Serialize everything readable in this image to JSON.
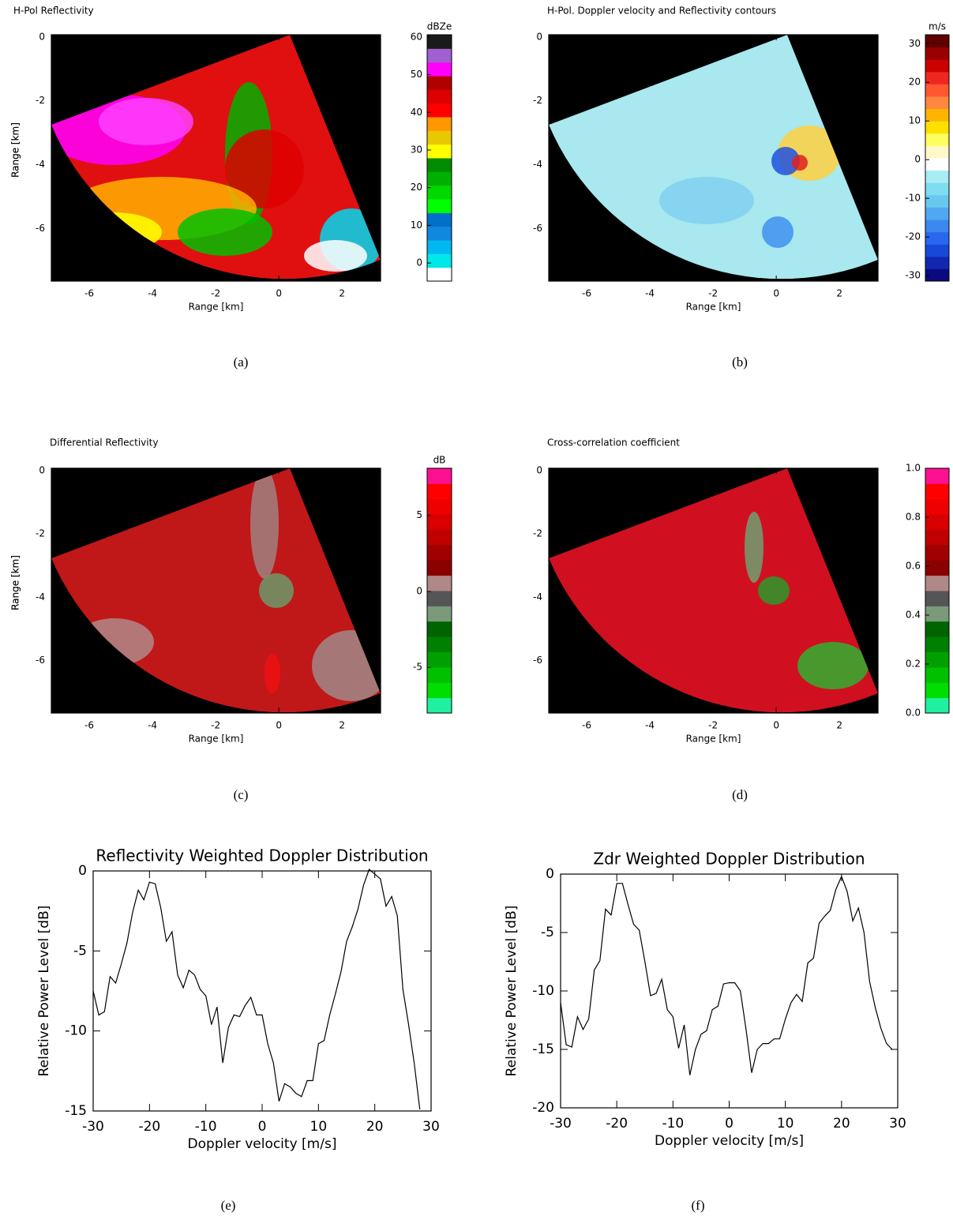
{
  "chart_data": [
    {
      "type": "image",
      "title": "H-Pol Reflectivity",
      "xlabel": "Range [km]",
      "ylabel": "Range [km]",
      "xlim": [
        -7.2,
        3.22
      ],
      "ylim": [
        -7.65,
        0.07
      ],
      "xticks": [
        -6,
        -4,
        -2,
        0,
        2
      ],
      "yticks": [
        0,
        -2,
        -4,
        -6
      ],
      "colorbar": {
        "label": "dBZe",
        "lim": [
          -4.8,
          60.6
        ],
        "ticks": [
          0,
          10,
          20,
          30,
          40,
          50,
          60
        ],
        "colors": [
          "#ffffff",
          "#00e8e8",
          "#00b8f0",
          "#1088dd",
          "#0070c8",
          "#00ff00",
          "#00d800",
          "#00b000",
          "#008c00",
          "#ffff00",
          "#e8c800",
          "#ff9800",
          "#ff0000",
          "#dd0000",
          "#b00000",
          "#ff00ff",
          "#a060d0",
          "#1a1a1a"
        ]
      },
      "caption": "(a)"
    },
    {
      "type": "image",
      "title": "H-Pol. Doppler velocity and Reflectivity contours",
      "xlabel": "Range [km]",
      "ylabel": "Range [km]",
      "xlim": [
        -7.2,
        3.22
      ],
      "ylim": [
        -7.65,
        0.07
      ],
      "xticks": [
        -6,
        -4,
        -2,
        0,
        2
      ],
      "yticks": [
        0,
        -2,
        -4,
        -6
      ],
      "colorbar": {
        "label": "m/s",
        "lim": [
          -31.4,
          32.3
        ],
        "ticks": [
          -30,
          -20,
          -10,
          0,
          10,
          20,
          30
        ],
        "colors": [
          "#0a0a80",
          "#1028b0",
          "#1848d8",
          "#2868f0",
          "#3c88f0",
          "#50a8f0",
          "#68c8f0",
          "#80dcf0",
          "#a8ecf4",
          "#ffffff",
          "#fff8c8",
          "#ffff60",
          "#ffe000",
          "#ffb400",
          "#ff8840",
          "#ff5830",
          "#ee2820",
          "#cc0000",
          "#990000",
          "#600000"
        ]
      },
      "caption": "(b)"
    },
    {
      "type": "image",
      "title": "Differential Reflectivity",
      "xlabel": "Range [km]",
      "ylabel": "Range [km]",
      "xlim": [
        -7.2,
        3.22
      ],
      "ylim": [
        -7.65,
        0.07
      ],
      "xticks": [
        -6,
        -4,
        -2,
        0,
        2
      ],
      "yticks": [
        0,
        -2,
        -4,
        -6
      ],
      "colorbar": {
        "label": "dB",
        "lim": [
          -8,
          8.1
        ],
        "ticks": [
          -5,
          0,
          5
        ],
        "colors": [
          "#20f0a0",
          "#00dd00",
          "#00c000",
          "#00a000",
          "#008000",
          "#006400",
          "#7a9a7a",
          "#555555",
          "#b08888",
          "#8b0000",
          "#a00000",
          "#c00000",
          "#d80000",
          "#ee0000",
          "#ff0000",
          "#ff1090"
        ]
      },
      "caption": "(c)"
    },
    {
      "type": "image",
      "title": "Cross-correlation coefficient",
      "xlabel": "Range [km]",
      "ylabel": "Range [km]",
      "xlim": [
        -7.2,
        3.22
      ],
      "ylim": [
        -7.65,
        0.07
      ],
      "xticks": [
        -6,
        -4,
        -2,
        0,
        2
      ],
      "yticks": [
        0,
        -2,
        -4,
        -6
      ],
      "colorbar": {
        "lim": [
          0,
          1
        ],
        "ticks": [
          {
            "value": 0,
            "label": "0.0"
          },
          {
            "value": 0.2,
            "label": "0.2"
          },
          {
            "value": 0.4,
            "label": "0.4"
          },
          {
            "value": 0.6,
            "label": "0.6"
          },
          {
            "value": 0.8,
            "label": "0.8"
          },
          {
            "value": 1,
            "label": "1.0"
          }
        ],
        "colors": [
          "#20f0a0",
          "#00dd00",
          "#00c000",
          "#00a000",
          "#008000",
          "#006400",
          "#7a9a7a",
          "#555555",
          "#b08888",
          "#8b0000",
          "#a00000",
          "#c00000",
          "#d80000",
          "#ee0000",
          "#ff0000",
          "#ff1090"
        ]
      },
      "caption": "(d)"
    },
    {
      "type": "line",
      "title": "Reflectivity Weighted Doppler Distribution",
      "xlabel": "Doppler velocity [m/s]",
      "ylabel": "Relative Power Level [dB]",
      "xlim": [
        -30,
        30
      ],
      "ylim": [
        -15,
        0
      ],
      "xticks": [
        -30,
        -20,
        -10,
        0,
        10,
        20,
        30
      ],
      "yticks": [
        0,
        -5,
        -10,
        -15
      ],
      "color": "#000000",
      "x": [
        -30,
        -29,
        -28,
        -27,
        -26,
        -25,
        -24,
        -23,
        -22,
        -21,
        -20,
        -19,
        -18,
        -17,
        -16,
        -15,
        -14,
        -13,
        -12,
        -11,
        -10,
        -9,
        -8,
        -7,
        -6,
        -5,
        -4,
        -3,
        -2,
        -1,
        0,
        1,
        2,
        3,
        4,
        5,
        6,
        7,
        8,
        9,
        10,
        11,
        12,
        13,
        14,
        15,
        16,
        17,
        18,
        19,
        20,
        21,
        22,
        23,
        24,
        25,
        26,
        27,
        28
      ],
      "values": [
        -7.5,
        -9.0,
        -8.8,
        -6.6,
        -7.0,
        -5.8,
        -4.5,
        -2.6,
        -1.2,
        -1.8,
        -0.7,
        -0.8,
        -2.3,
        -4.4,
        -3.8,
        -6.5,
        -7.3,
        -6.2,
        -6.5,
        -7.4,
        -7.8,
        -9.6,
        -8.5,
        -12.0,
        -9.8,
        -9.0,
        -9.1,
        -8.4,
        -7.9,
        -9.0,
        -9.0,
        -10.8,
        -12.0,
        -14.4,
        -13.3,
        -13.5,
        -13.9,
        -14.1,
        -13.1,
        -13.1,
        -10.8,
        -10.6,
        -9.0,
        -7.7,
        -6.3,
        -4.4,
        -3.5,
        -2.4,
        -0.9,
        0.1,
        -0.2,
        -0.5,
        -2.2,
        -1.6,
        -2.8,
        -7.4,
        -9.6,
        -12.0,
        -14.9
      ],
      "caption": "(e)"
    },
    {
      "type": "line",
      "title": "Zdr Weighted Doppler Distribution",
      "xlabel": "Doppler velocity [m/s]",
      "ylabel": "Relative Power Level [dB]",
      "xlim": [
        -30,
        30
      ],
      "ylim": [
        -20,
        0
      ],
      "xticks": [
        -30,
        -20,
        -10,
        0,
        10,
        20,
        30
      ],
      "yticks": [
        0,
        -5,
        -10,
        -15,
        -20
      ],
      "color": "#000000",
      "x": [
        -30,
        -29,
        -28,
        -27,
        -26,
        -25,
        -24,
        -23,
        -22,
        -21,
        -20,
        -19,
        -18,
        -17,
        -16,
        -15,
        -14,
        -13,
        -12,
        -11,
        -10,
        -9,
        -8,
        -7,
        -6,
        -5,
        -4,
        -3,
        -2,
        -1,
        0,
        1,
        2,
        3,
        4,
        5,
        6,
        7,
        8,
        9,
        10,
        11,
        12,
        13,
        14,
        15,
        16,
        17,
        18,
        19,
        20,
        21,
        22,
        23,
        24,
        25,
        26,
        27,
        28,
        29
      ],
      "values": [
        -11.0,
        -14.6,
        -14.8,
        -12.2,
        -13.3,
        -12.4,
        -8.2,
        -7.4,
        -3.0,
        -3.5,
        -0.8,
        -0.8,
        -2.6,
        -4.3,
        -4.8,
        -7.5,
        -10.4,
        -10.2,
        -9.0,
        -11.6,
        -12.2,
        -14.9,
        -12.9,
        -17.2,
        -15.0,
        -13.7,
        -13.4,
        -11.6,
        -11.3,
        -9.4,
        -9.3,
        -9.3,
        -10.0,
        -13.3,
        -17.0,
        -15.0,
        -14.5,
        -14.5,
        -14.1,
        -14.1,
        -12.4,
        -11.0,
        -10.3,
        -10.9,
        -7.6,
        -7.2,
        -4.2,
        -3.6,
        -3.1,
        -1.3,
        -0.2,
        -1.5,
        -4.0,
        -2.9,
        -5.0,
        -9.2,
        -11.4,
        -13.2,
        -14.5,
        -15.0
      ],
      "caption": "(f)"
    }
  ]
}
